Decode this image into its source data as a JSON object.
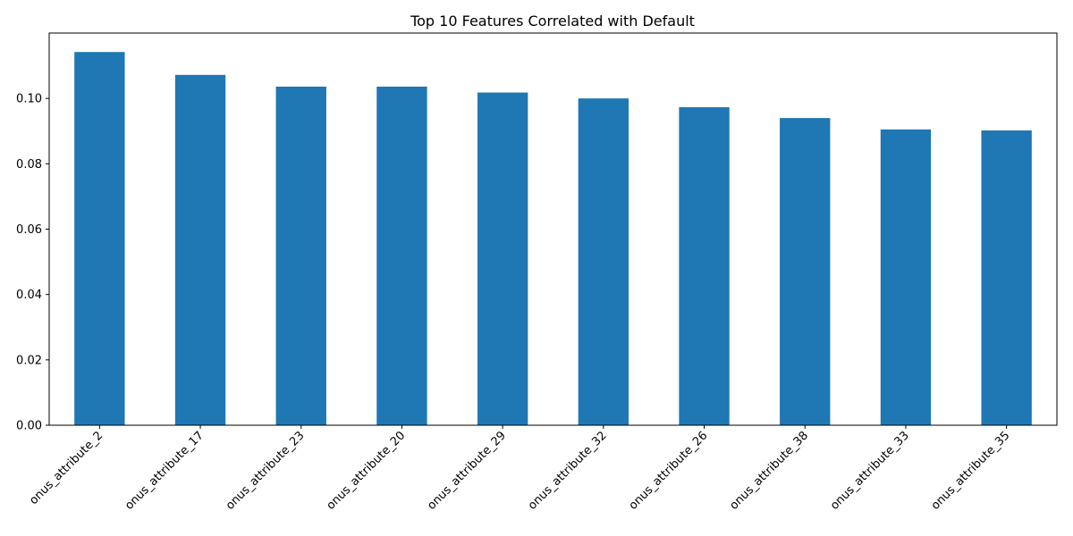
{
  "chart_data": {
    "type": "bar",
    "title": "Top 10 Features Correlated with Default",
    "xlabel": "",
    "ylabel": "",
    "categories": [
      "onus_attribute_2",
      "onus_attribute_17",
      "onus_attribute_23",
      "onus_attribute_20",
      "onus_attribute_29",
      "onus_attribute_32",
      "onus_attribute_26",
      "onus_attribute_38",
      "onus_attribute_33",
      "onus_attribute_35"
    ],
    "values": [
      0.1142,
      0.1072,
      0.1036,
      0.1036,
      0.1018,
      0.1,
      0.0973,
      0.094,
      0.0905,
      0.0902
    ],
    "ylim": [
      0,
      0.12
    ],
    "yticks": [
      0.0,
      0.02,
      0.04,
      0.06,
      0.08,
      0.1
    ],
    "ytick_labels": [
      "0.00",
      "0.02",
      "0.04",
      "0.06",
      "0.08",
      "0.10"
    ],
    "grid": false,
    "legend": "none",
    "colors": {
      "bar": "#1f77b4",
      "axis": "#000000",
      "background": "#ffffff"
    }
  }
}
